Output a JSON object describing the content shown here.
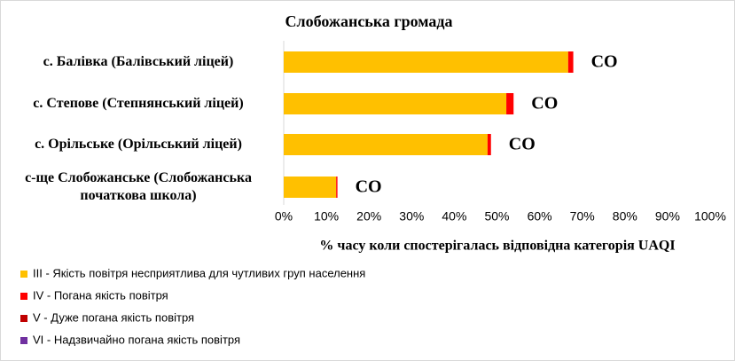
{
  "chart_data": {
    "type": "stacked-barh",
    "title": "Слобожанська громада",
    "categories": [
      "с. Балівка (Балівський ліцей)",
      "с. Степове (Степнянський ліцей)",
      "с. Орільське (Орільський ліцей)",
      "с-ще Слобожанське (Слобожанська початкова школа)"
    ],
    "series": [
      {
        "name": "III - Якість повітря несприятлива для чутливих груп населення",
        "color": "#FFC000",
        "values": [
          66.7,
          52.2,
          47.8,
          12.3
        ]
      },
      {
        "name": "IV - Погана якість повітря",
        "color": "#FF0000",
        "values": [
          1.2,
          1.7,
          0.8,
          0.3
        ]
      },
      {
        "name": "V - Дуже погана якість повітря",
        "color": "#C00000",
        "values": [
          0,
          0,
          0,
          0
        ]
      },
      {
        "name": "VI - Надзвичайно погана якість повітря",
        "color": "#7030A0",
        "values": [
          0,
          0,
          0,
          0
        ]
      }
    ],
    "annotations": [
      "CO",
      "CO",
      "CO",
      "CO"
    ],
    "xlabel": "% часу коли спостерігалась відповідна категорія UAQI",
    "xlim": [
      0,
      100
    ],
    "xticks": [
      {
        "value": 0,
        "label": "0%"
      },
      {
        "value": 10,
        "label": "10%"
      },
      {
        "value": 20,
        "label": "20%"
      },
      {
        "value": 30,
        "label": "30%"
      },
      {
        "value": 40,
        "label": "40%"
      },
      {
        "value": 50,
        "label": "50%"
      },
      {
        "value": 60,
        "label": "60%"
      },
      {
        "value": 70,
        "label": "70%"
      },
      {
        "value": 80,
        "label": "80%"
      },
      {
        "value": 90,
        "label": "90%"
      },
      {
        "value": 100,
        "label": "100%"
      }
    ],
    "grid": false,
    "legend": "bottom-left"
  }
}
